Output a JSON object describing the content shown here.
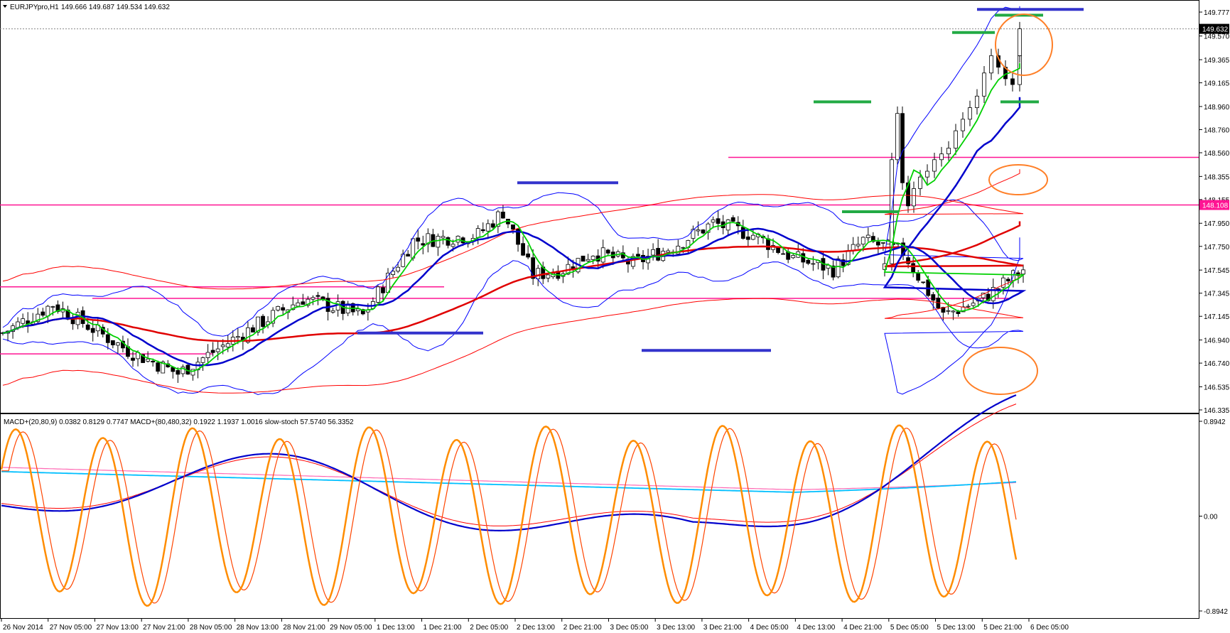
{
  "chart_data": {
    "type": "candlestick",
    "symbol_header": "EURJPYpro,H1",
    "ohlc_header": "149.666 149.687 149.534 149.632",
    "price_axis": {
      "ylim": [
        146.335,
        149.777
      ],
      "ticks": [
        "149.777",
        "149.570",
        "149.365",
        "149.165",
        "148.960",
        "148.760",
        "148.560",
        "148.355",
        "148.155",
        "147.950",
        "147.750",
        "147.545",
        "147.345",
        "147.145",
        "146.940",
        "146.740",
        "146.535",
        "146.335"
      ],
      "current_price": "149.632",
      "current_price_color": "#000000",
      "marked_level": "148.108",
      "marked_level_color": "#ff1493"
    },
    "time_axis": {
      "labels": [
        "26 Nov 2014",
        "27 Nov 05:00",
        "27 Nov 13:00",
        "27 Nov 21:00",
        "28 Nov 05:00",
        "28 Nov 13:00",
        "28 Nov 21:00",
        "29 Nov 05:00",
        "1 Dec 13:00",
        "1 Dec 21:00",
        "2 Dec 05:00",
        "2 Dec 13:00",
        "2 Dec 21:00",
        "3 Dec 05:00",
        "3 Dec 13:00",
        "3 Dec 21:00",
        "4 Dec 05:00",
        "4 Dec 13:00",
        "4 Dec 21:00",
        "5 Dec 05:00",
        "5 Dec 13:00",
        "5 Dec 21:00",
        "6 Dec 05:00"
      ]
    },
    "horizontal_levels": [
      {
        "price": 148.108,
        "color": "#ff1493"
      },
      {
        "price": 148.52,
        "color": "#ff1493"
      },
      {
        "price": 147.4,
        "color": "#ff1493"
      },
      {
        "price": 147.3,
        "color": "#ff1493"
      },
      {
        "price": 146.82,
        "color": "#ff1493"
      }
    ],
    "colors": {
      "bull_body": "#ffffff",
      "bear_body": "#000000",
      "wick": "#000000",
      "fast_ma": "#00d000",
      "mid_ma": "#0000cc",
      "slow_ma": "#e00000",
      "bollinger": "#0000ff",
      "envelope": "#ff0000",
      "level_line": "#ff1493",
      "marker_blue": "#3333cc",
      "marker_green": "#22aa44",
      "ellipse": "#ff7f27"
    },
    "indicator_header": "MACD+(20,80,9) 0.0382 0.8129 0.7747   MACD+(80,480,32) 0.1922 1.1937 1.0016   slow-stoch 57.5740 56.3352",
    "indicator_axis": {
      "ylim": [
        -0.8942,
        0.8942
      ],
      "ticks": [
        "0.8942",
        "0.00",
        "-0.8942"
      ]
    },
    "indicator_colors": {
      "stoch_main": "#ff8c00",
      "stoch_signal": "#ff4500",
      "macd_fast": "#0000cc",
      "macd_fast_signal": "#ff0000",
      "macd_slow": "#00bfff",
      "macd_slow_signal": "#ff69b4"
    }
  }
}
